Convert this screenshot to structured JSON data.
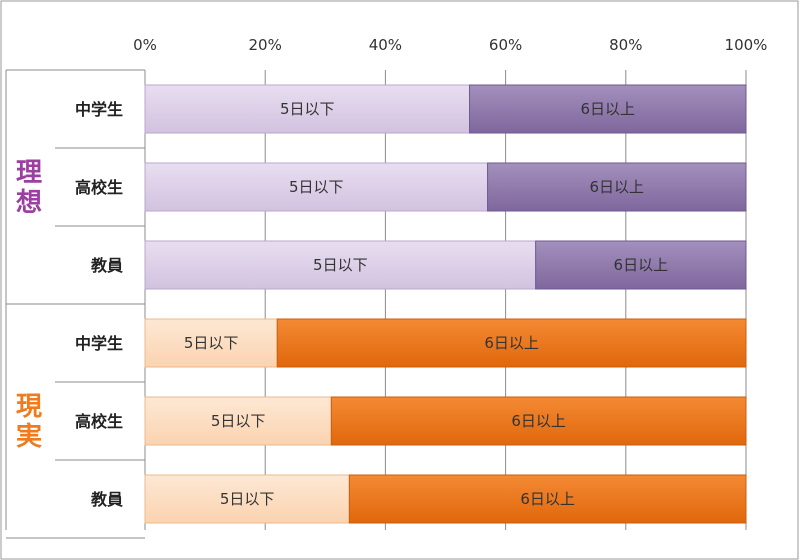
{
  "chart_data": {
    "type": "bar",
    "orientation": "horizontal",
    "stacked": "percent",
    "xlim": [
      0,
      100
    ],
    "x_ticks": [
      "0%",
      "20%",
      "40%",
      "60%",
      "80%",
      "100%"
    ],
    "grid": true,
    "groups": [
      {
        "name": "理想",
        "color": "#9B3FA0",
        "categories": [
          "中学生",
          "高校生",
          "教員"
        ],
        "series": [
          {
            "name": "5日以下",
            "values": [
              54,
              57,
              65
            ],
            "color": "#D9CBE6",
            "label": "5日以下"
          },
          {
            "name": "6日以上",
            "values": [
              46,
              43,
              35
            ],
            "color": "#8C74A9",
            "label": "6日以上"
          }
        ]
      },
      {
        "name": "現実",
        "color": "#F07B1E",
        "categories": [
          "中学生",
          "高校生",
          "教員"
        ],
        "series": [
          {
            "name": "5日以下",
            "values": [
              22,
              31,
              34
            ],
            "color": "#FCDCC0",
            "label": "5日以下"
          },
          {
            "name": "6日以上",
            "values": [
              78,
              69,
              66
            ],
            "color": "#EC7316",
            "label": "6日以上"
          }
        ]
      }
    ]
  }
}
